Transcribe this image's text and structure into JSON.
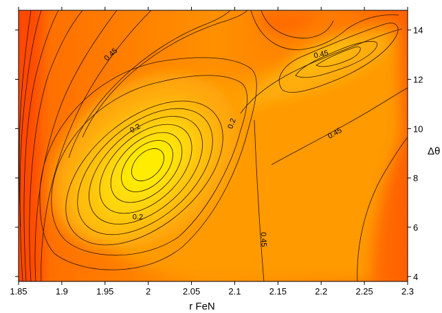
{
  "chart_data": {
    "type": "contour",
    "title": "",
    "xlabel": "r FeN",
    "ylabel": "Δθ",
    "xlim": [
      1.85,
      2.3
    ],
    "ylim": [
      3.8,
      14.8
    ],
    "x_ticks": [
      "1.85",
      "1.9",
      "1.95",
      "2",
      "2.05",
      "2.1",
      "2.15",
      "2.2",
      "2.25",
      "2.3"
    ],
    "y_ticks": [
      "4",
      "6",
      "8",
      "10",
      "12",
      "14"
    ],
    "x_tick_values": [
      1.85,
      1.9,
      1.95,
      2.0,
      2.05,
      2.1,
      2.15,
      2.2,
      2.25,
      2.3
    ],
    "y_tick_values": [
      4,
      6,
      8,
      10,
      12,
      14
    ],
    "contour_labels": [
      {
        "text": "0.45",
        "x": 1.957,
        "y": 13.0,
        "angle": -42
      },
      {
        "text": "0.45",
        "x": 2.2,
        "y": 13.0,
        "angle": -12
      },
      {
        "text": "0.45",
        "x": 2.216,
        "y": 9.8,
        "angle": -30
      },
      {
        "text": "0.45",
        "x": 2.133,
        "y": 5.5,
        "angle": 88
      },
      {
        "text": "0.2",
        "x": 1.985,
        "y": 10.0,
        "angle": -30
      },
      {
        "text": "0.2",
        "x": 2.097,
        "y": 10.2,
        "angle": -70
      },
      {
        "text": "0.2",
        "x": 1.988,
        "y": 6.4,
        "angle": 0
      }
    ],
    "colormap": [
      "#ffff00",
      "#ffcc00",
      "#ff8800",
      "#ff3300"
    ],
    "grid": false
  }
}
